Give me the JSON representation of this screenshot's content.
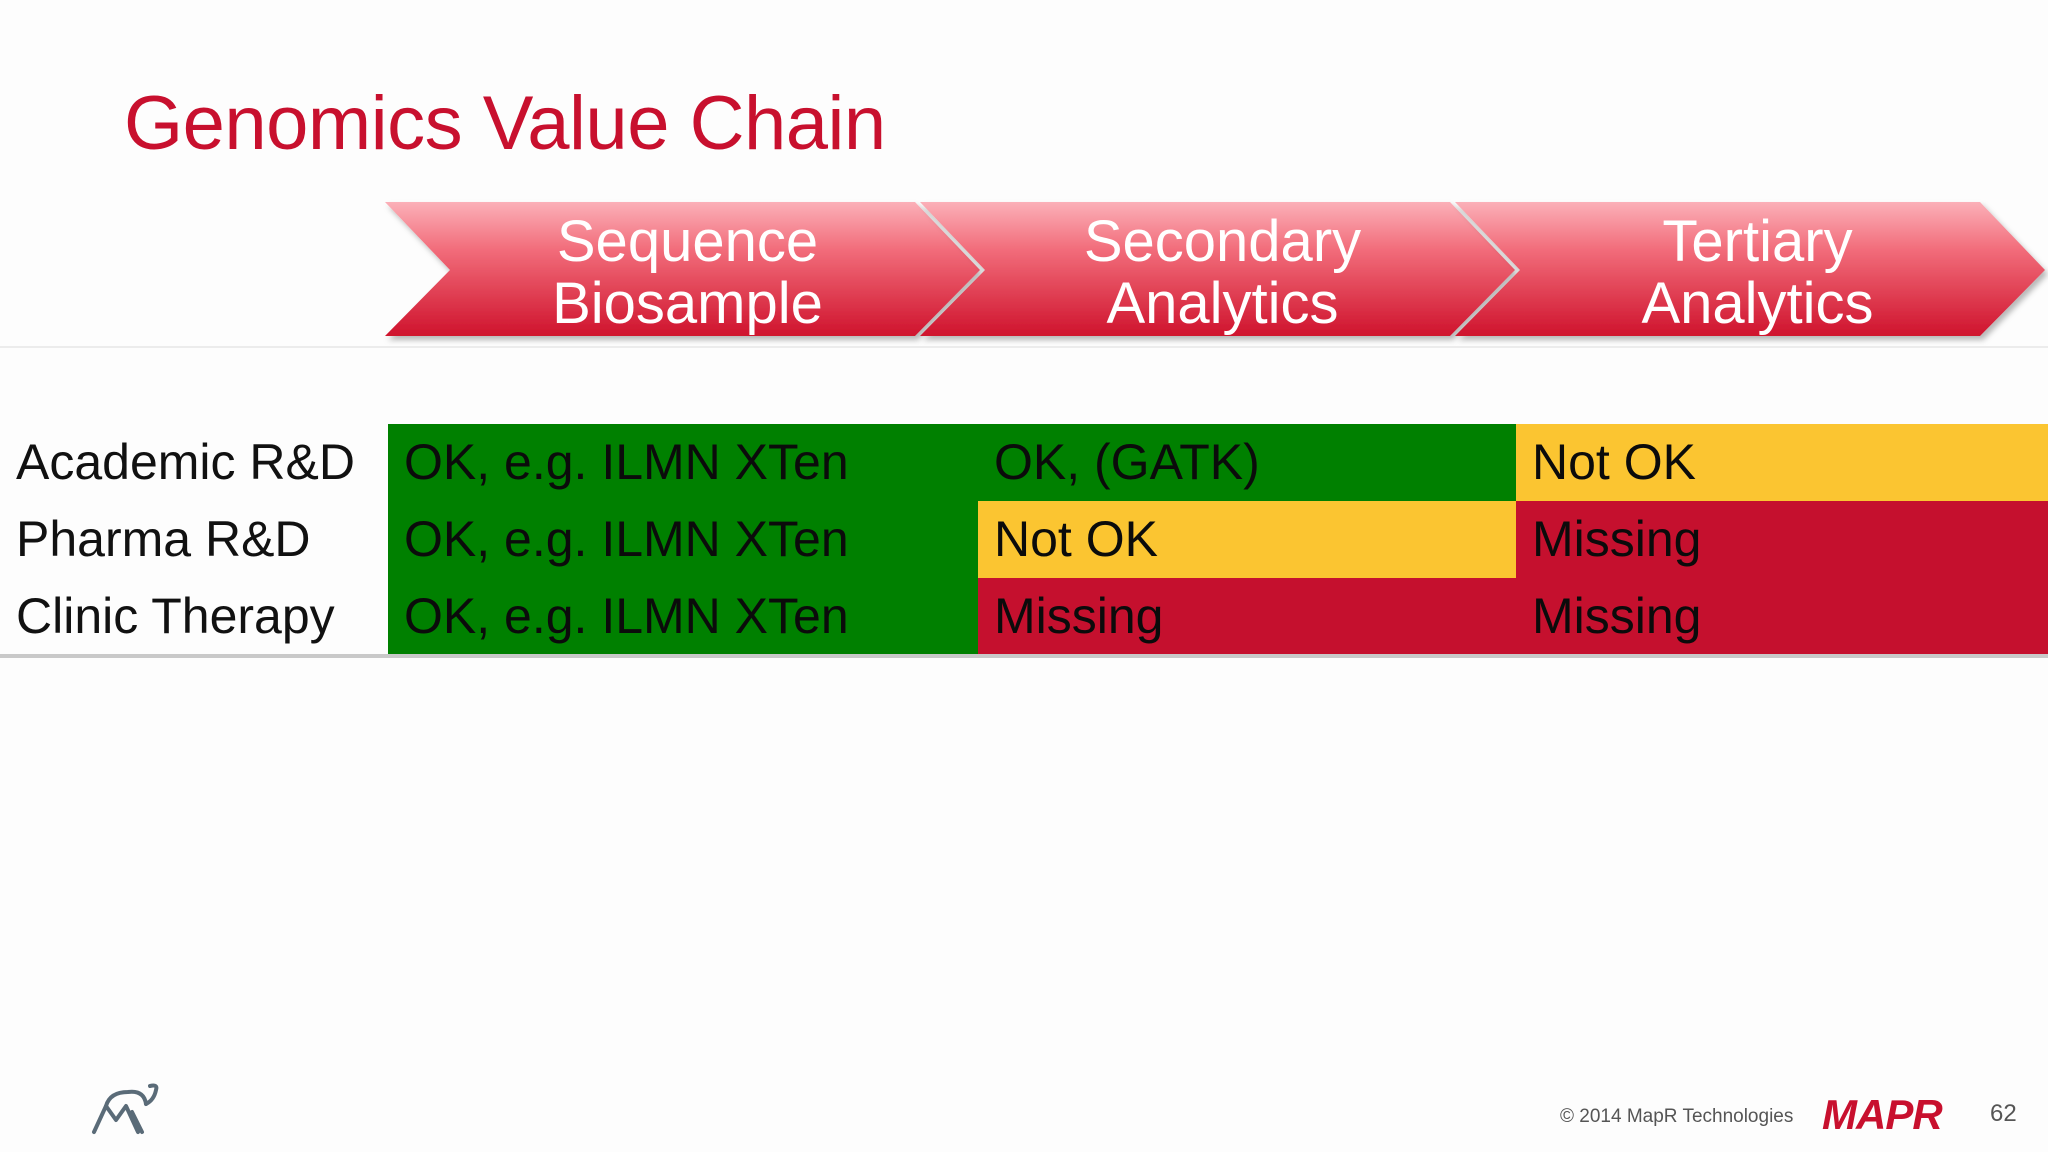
{
  "slide": {
    "title": "Genomics Value Chain",
    "page_number": "62",
    "copyright": "© 2014 MapR Technologies",
    "brand_logo_text": "MAPR"
  },
  "stages": [
    {
      "line1": "Sequence",
      "line2": "Biosample"
    },
    {
      "line1": "Secondary",
      "line2": "Analytics"
    },
    {
      "line1": "Tertiary",
      "line2": "Analytics"
    }
  ],
  "rows": [
    {
      "label": "Academic R&D",
      "cells": [
        "OK, e.g. ILMN XTen",
        "OK, (GATK)",
        "Not OK"
      ]
    },
    {
      "label": "Pharma R&D",
      "cells": [
        "OK, e.g. ILMN XTen",
        "Not OK",
        "Missing"
      ]
    },
    {
      "label": "Clinic Therapy",
      "cells": [
        "OK, e.g. ILMN XTen",
        "Missing",
        "Missing"
      ]
    }
  ],
  "colors": {
    "title": "#c8102e",
    "ok": "#008000",
    "not_ok": "#fbc531",
    "missing": "#c5102e",
    "chevron_top": "#f99aa4",
    "chevron_bottom": "#d0162e"
  },
  "icons": {
    "left_footer": "elephant-logo-icon",
    "brand": "mapr-logo"
  }
}
